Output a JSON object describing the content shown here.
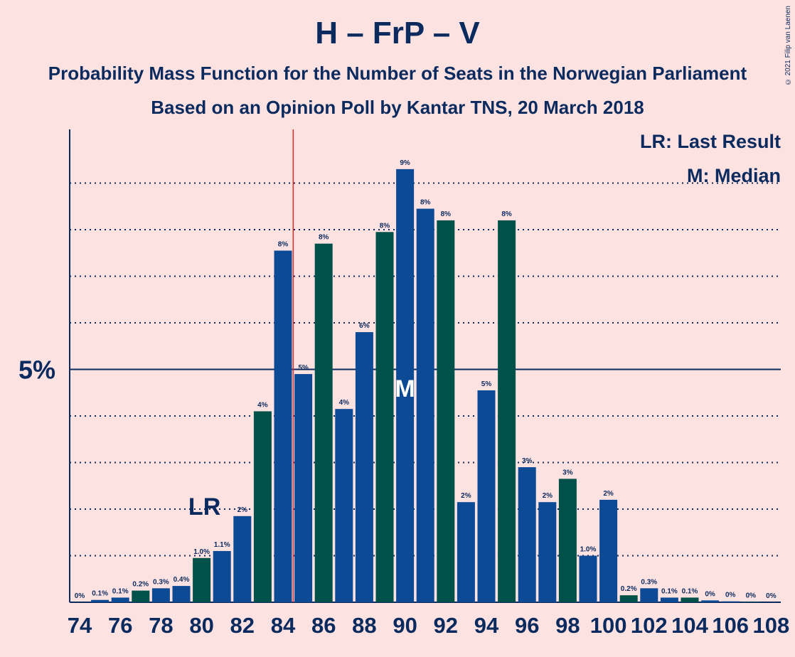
{
  "title": "H – FrP – V",
  "subtitle1": "Probability Mass Function for the Number of Seats in the Norwegian Parliament",
  "subtitle2": "Based on an Opinion Poll by Kantar TNS, 20 March 2018",
  "copyright": "© 2021 Filip van Laenen",
  "legend": {
    "lr": "LR: Last Result",
    "m": "M: Median"
  },
  "colors": {
    "blue": "#0c4a96",
    "teal": "#00514a",
    "text": "#0b2a5e",
    "background": "#fde2e2",
    "lastResultLine": "#e0282a"
  },
  "chart_data": {
    "type": "bar",
    "categories": [
      "74",
      "75",
      "76",
      "77",
      "78",
      "79",
      "80",
      "81",
      "82",
      "83",
      "84",
      "85",
      "86",
      "87",
      "88",
      "89",
      "90",
      "91",
      "92",
      "93",
      "94",
      "95",
      "96",
      "97",
      "98",
      "99",
      "100",
      "101",
      "102",
      "103",
      "104",
      "105",
      "106",
      "107",
      "108"
    ],
    "values": [
      0.0,
      0.05,
      0.1,
      0.25,
      0.3,
      0.35,
      0.95,
      1.1,
      1.85,
      4.1,
      7.55,
      4.9,
      7.7,
      4.15,
      5.8,
      7.95,
      9.3,
      8.45,
      8.2,
      2.15,
      4.55,
      8.2,
      2.9,
      2.15,
      2.65,
      1.0,
      2.2,
      0.15,
      0.3,
      0.1,
      0.1,
      0.04,
      0.02,
      0.01,
      0.0
    ],
    "labels": [
      "0%",
      "0.1%",
      "0.1%",
      "0.2%",
      "0.3%",
      "0.4%",
      "1.0%",
      "1.1%",
      "2%",
      "4%",
      "8%",
      "5%",
      "8%",
      "4%",
      "6%",
      "8%",
      "9%",
      "8%",
      "8%",
      "2%",
      "5%",
      "8%",
      "3%",
      "2%",
      "3%",
      "1.0%",
      "2%",
      "0.2%",
      "0.3%",
      "0.1%",
      "0.1%",
      "0%",
      "0%",
      "0%",
      "0%"
    ],
    "bar_colors": [
      "blue",
      "blue",
      "blue",
      "teal",
      "blue",
      "blue",
      "teal",
      "blue",
      "blue",
      "teal",
      "blue",
      "blue",
      "teal",
      "blue",
      "blue",
      "teal",
      "blue",
      "blue",
      "teal",
      "blue",
      "blue",
      "teal",
      "blue",
      "blue",
      "teal",
      "blue",
      "blue",
      "teal",
      "blue",
      "blue",
      "teal",
      "blue",
      "blue",
      "teal",
      "blue"
    ],
    "xticks": [
      "74",
      "76",
      "78",
      "80",
      "82",
      "84",
      "86",
      "88",
      "90",
      "92",
      "94",
      "96",
      "98",
      "100",
      "102",
      "104",
      "106",
      "108"
    ],
    "ytick_label": "5%",
    "ytick_value": 5,
    "ylim": [
      0,
      10
    ],
    "gridlines": [
      1,
      2,
      3,
      4,
      6,
      7,
      8,
      9
    ],
    "last_result": {
      "seats": 84.5,
      "text": "LR",
      "label_at": "80"
    },
    "median": {
      "seats": "90",
      "text": "M"
    }
  }
}
